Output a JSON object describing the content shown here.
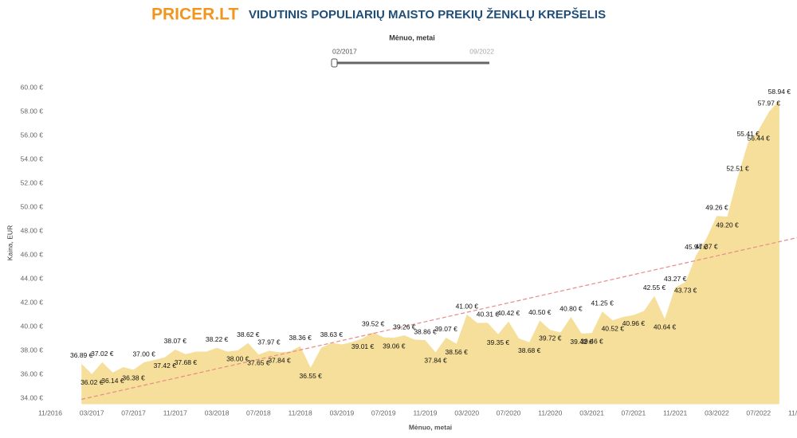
{
  "logo": "PRICER.LT",
  "filter": {
    "label": "Mėnuo, metai",
    "start": "02/2017",
    "end": "09/2022"
  },
  "chart_data": {
    "type": "area",
    "title": "VIDUTINIS POPULIARIŲ MAISTO PREKIŲ ŽENKLŲ KREPŠELIS",
    "x_label": "Mėnuo, metai",
    "y_label": "Kaina, EUR",
    "x": [
      "02/2017",
      "03/2017",
      "04/2017",
      "05/2017",
      "06/2017",
      "07/2017",
      "08/2017",
      "09/2017",
      "10/2017",
      "11/2017",
      "12/2017",
      "01/2018",
      "02/2018",
      "03/2018",
      "04/2018",
      "05/2018",
      "06/2018",
      "07/2018",
      "08/2018",
      "09/2018",
      "10/2018",
      "11/2018",
      "12/2018",
      "01/2019",
      "02/2019",
      "03/2019",
      "04/2019",
      "05/2019",
      "06/2019",
      "07/2019",
      "08/2019",
      "09/2019",
      "10/2019",
      "11/2019",
      "12/2019",
      "01/2020",
      "02/2020",
      "03/2020",
      "04/2020",
      "05/2020",
      "06/2020",
      "07/2020",
      "08/2020",
      "09/2020",
      "10/2020",
      "11/2020",
      "12/2020",
      "01/2021",
      "02/2021",
      "03/2021",
      "04/2021",
      "05/2021",
      "06/2021",
      "07/2021",
      "08/2021",
      "09/2021",
      "10/2021",
      "11/2021",
      "12/2021",
      "01/2022",
      "02/2022",
      "03/2022",
      "04/2022",
      "05/2022",
      "06/2022",
      "07/2022",
      "08/2022",
      "09/2022"
    ],
    "series": [
      {
        "name": "Kaina",
        "color": "#f6df9a",
        "values": [
          36.89,
          36.02,
          37.02,
          36.14,
          36.6,
          36.38,
          37.0,
          37.2,
          37.42,
          38.07,
          37.68,
          37.9,
          37.9,
          38.22,
          37.9,
          38.0,
          38.62,
          37.65,
          37.97,
          37.84,
          37.9,
          38.36,
          36.55,
          38.2,
          38.63,
          38.5,
          38.7,
          39.01,
          39.52,
          39.1,
          39.06,
          39.26,
          38.9,
          38.86,
          37.84,
          39.07,
          38.56,
          41.0,
          40.3,
          40.31,
          39.35,
          40.42,
          39.0,
          38.68,
          40.5,
          39.72,
          39.5,
          40.8,
          39.42,
          39.46,
          41.25,
          40.52,
          40.8,
          40.96,
          41.3,
          42.55,
          40.64,
          43.27,
          43.73,
          45.94,
          47.37,
          49.26,
          49.2,
          52.51,
          55.41,
          56.44,
          57.97,
          58.94
        ],
        "value_labels": [
          "36.89 €",
          "36.02 €",
          "37.02 €",
          "36.14 €",
          null,
          "36.38 €",
          "37.00 €",
          null,
          "37.42 €",
          "38.07 €",
          "37.68 €",
          null,
          null,
          "38.22 €",
          null,
          "38.00 €",
          "38.62 €",
          "37.65 €",
          "37.97 €",
          "37.84 €",
          null,
          "38.36 €",
          "36.55 €",
          null,
          "38.63 €",
          null,
          null,
          "39.01 €",
          "39.52 €",
          null,
          "39.06 €",
          "39.26 €",
          null,
          "38.86 €",
          "37.84 €",
          "39.07 €",
          "38.56 €",
          "41.00 €",
          null,
          "40.31 €",
          "39.35 €",
          "40.42 €",
          null,
          "38.68 €",
          "40.50 €",
          "39.72 €",
          null,
          "40.80 €",
          "39.42 €",
          "39.46 €",
          "41.25 €",
          "40.52 €",
          null,
          "40.96 €",
          null,
          "42.55 €",
          "40.64 €",
          "43.27 €",
          "43.73 €",
          "45.94 €",
          "47.37 €",
          "49.26 €",
          "49.20 €",
          "52.51 €",
          "55.41 €",
          "56.44 €",
          "57.97 €",
          "58.94 €"
        ]
      }
    ],
    "trend": {
      "color": "#e88a8a",
      "x": [
        "02/2017",
        "09/2022"
      ],
      "values": [
        33.9,
        47.1
      ]
    },
    "xlim": [
      "11/2016",
      "11/2022"
    ],
    "xticks": [
      "11/2016",
      "03/2017",
      "07/2017",
      "11/2017",
      "03/2018",
      "07/2018",
      "11/2018",
      "03/2019",
      "07/2019",
      "11/2019",
      "03/2020",
      "07/2020",
      "11/2020",
      "03/2021",
      "07/2021",
      "11/2021",
      "03/2022",
      "07/2022",
      "11/2022"
    ],
    "ylim": [
      33.5,
      60.8
    ],
    "yticks": [
      {
        "value": 34,
        "label": "34.00 €"
      },
      {
        "value": 36,
        "label": "36.00 €"
      },
      {
        "value": 38,
        "label": "38.00 €"
      },
      {
        "value": 40,
        "label": "40.00 €"
      },
      {
        "value": 42,
        "label": "42.00 €"
      },
      {
        "value": 44,
        "label": "44.00 €"
      },
      {
        "value": 46,
        "label": "46.00 €"
      },
      {
        "value": 48,
        "label": "48.00 €"
      },
      {
        "value": 50,
        "label": "50.00 €"
      },
      {
        "value": 52,
        "label": "52.00 €"
      },
      {
        "value": 54,
        "label": "54.00 €"
      },
      {
        "value": 56,
        "label": "56.00 €"
      },
      {
        "value": 58,
        "label": "58.00 €"
      },
      {
        "value": 60,
        "label": "60.00 €"
      }
    ]
  }
}
